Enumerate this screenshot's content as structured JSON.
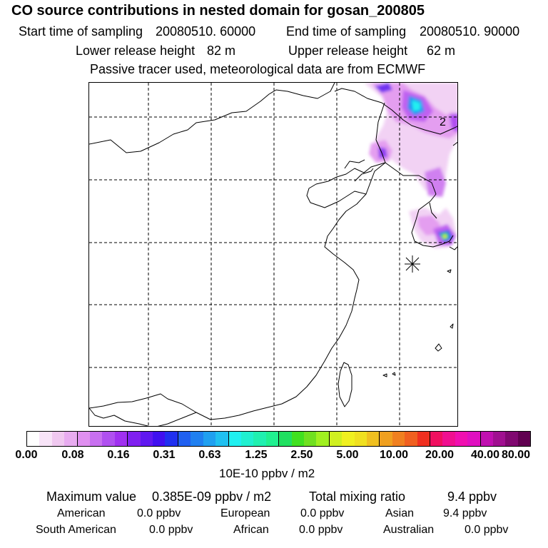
{
  "title": "CO  source contributions in nested domain for gosan_200805",
  "header": {
    "start_label": "Start time of sampling",
    "start_value": "20080510. 60000",
    "end_label": "End time of sampling",
    "end_value": "20080510. 90000",
    "lower_label": "Lower release height",
    "lower_value": "82 m",
    "upper_label": "Upper release height",
    "upper_value": "62 m",
    "note": "Passive tracer used, meteorological data are from ECMWF"
  },
  "map": {
    "contour_label": "2",
    "receptor_marker": "star-icon",
    "gridline_style": "dashed"
  },
  "colorbar": {
    "colors": [
      "#ffffff",
      "#f8e4f8",
      "#f0c8f0",
      "#e8acf0",
      "#e090f0",
      "#c870f0",
      "#b050f0",
      "#a030f0",
      "#8020f0",
      "#6018f0",
      "#4010f0",
      "#2030f0",
      "#2060f0",
      "#2080f0",
      "#20a0f0",
      "#20c0f0",
      "#20f0f0",
      "#20f0d0",
      "#20f0b0",
      "#20f090",
      "#20e060",
      "#40e020",
      "#70e020",
      "#a0f020",
      "#d0f020",
      "#f0f020",
      "#f0e020",
      "#f0c020",
      "#f0a020",
      "#f08020",
      "#f06020",
      "#f03020",
      "#f01060",
      "#f01090",
      "#f010b0",
      "#e010c0",
      "#c010b0",
      "#a01090",
      "#800870",
      "#600050"
    ],
    "ticks": [
      "0.00",
      "0.08",
      "0.16",
      "0.31",
      "0.63",
      "1.25",
      "2.50",
      "5.00",
      "10.00",
      "20.00",
      "40.00",
      "80.00"
    ],
    "unit": "10E-10 ppbv / m2"
  },
  "footer": {
    "max_label": "Maximum value",
    "max_value": "0.385E-09 ppbv / m2",
    "total_label": "Total mixing ratio",
    "total_value": "9.4 ppbv",
    "regions": [
      {
        "name": "American",
        "value": "0.0 ppbv"
      },
      {
        "name": "European",
        "value": "0.0 ppbv"
      },
      {
        "name": "Asian",
        "value": "9.4 ppbv"
      },
      {
        "name": "South American",
        "value": "0.0 ppbv"
      },
      {
        "name": "African",
        "value": "0.0 ppbv"
      },
      {
        "name": "Australian",
        "value": "0.0 ppbv"
      }
    ]
  }
}
